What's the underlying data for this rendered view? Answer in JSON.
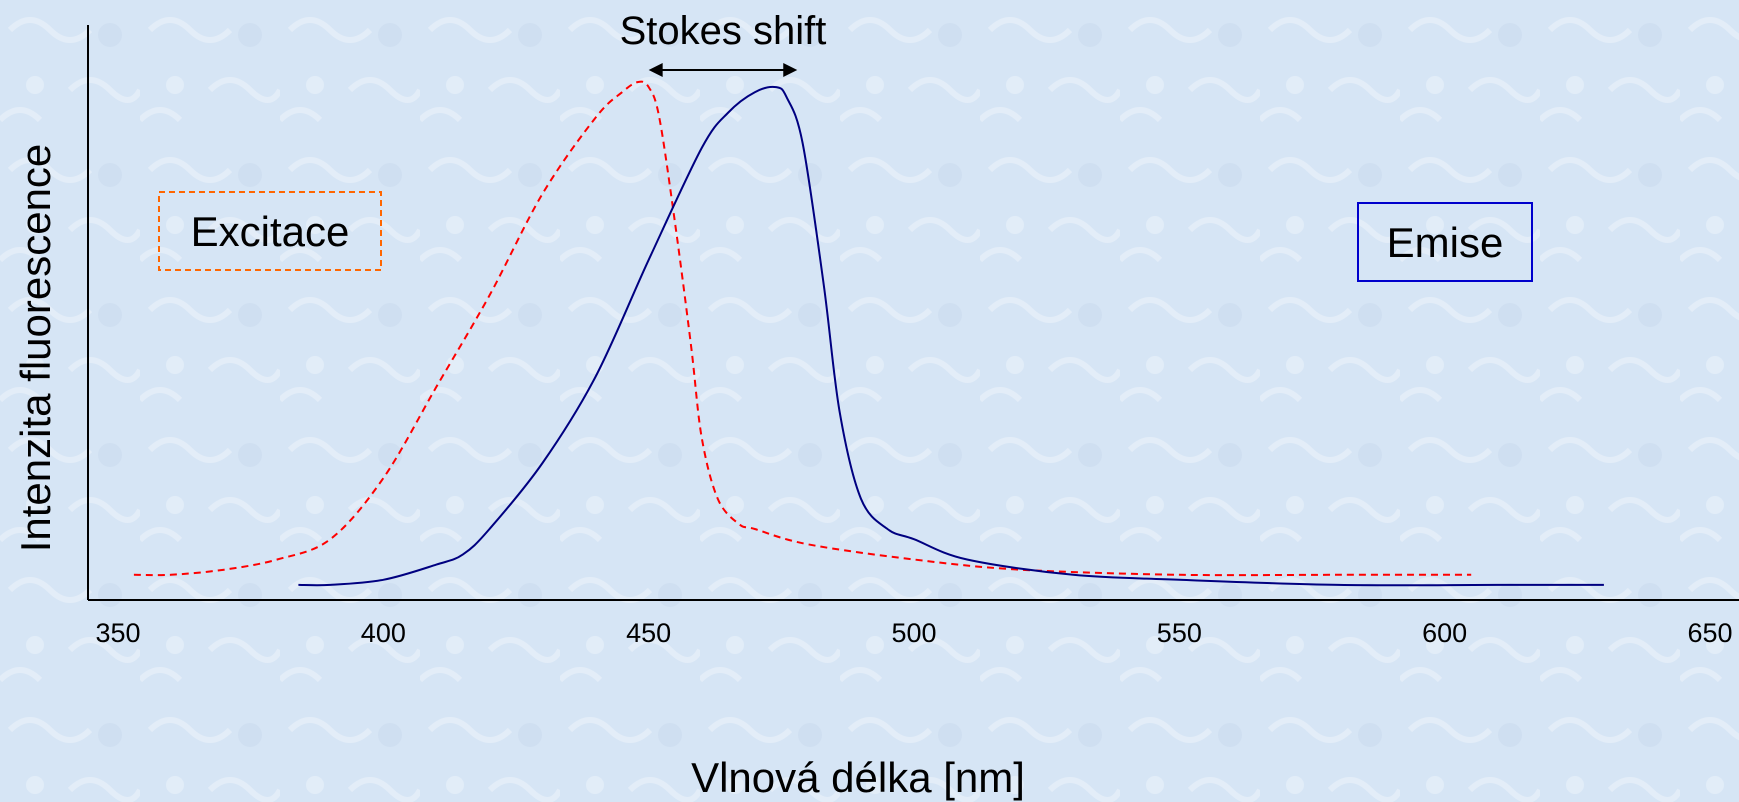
{
  "chart_data": {
    "type": "line",
    "xlabel": "Vlnová délka [nm]",
    "ylabel": "Intenzita fluorescence",
    "xlim": [
      350,
      650
    ],
    "ylim": [
      0,
      1
    ],
    "xticks": [
      "350",
      "400",
      "450",
      "500",
      "550",
      "600",
      "650"
    ],
    "yticks": [],
    "grid": false,
    "series": [
      {
        "name": "Excitace",
        "color": "#ff0000",
        "style": "dashed",
        "x": [
          353,
          360,
          370,
          380,
          390,
          400,
          410,
          420,
          430,
          440,
          445,
          448,
          450,
          452,
          455,
          458,
          460,
          463,
          467,
          470,
          480,
          500,
          520,
          550,
          580,
          605
        ],
        "y": [
          0.03,
          0.03,
          0.04,
          0.06,
          0.1,
          0.22,
          0.4,
          0.58,
          0.78,
          0.93,
          0.98,
          1.0,
          0.99,
          0.93,
          0.72,
          0.48,
          0.3,
          0.18,
          0.13,
          0.12,
          0.09,
          0.06,
          0.04,
          0.03,
          0.03,
          0.03
        ]
      },
      {
        "name": "Emise",
        "color": "#000080",
        "style": "solid",
        "x": [
          384,
          390,
          400,
          410,
          415,
          420,
          430,
          440,
          450,
          460,
          465,
          470,
          474,
          476,
          479,
          483,
          486,
          490,
          495,
          500,
          510,
          530,
          550,
          580,
          610,
          630
        ],
        "y": [
          0.01,
          0.01,
          0.02,
          0.05,
          0.07,
          0.12,
          0.25,
          0.42,
          0.65,
          0.87,
          0.94,
          0.98,
          0.99,
          0.97,
          0.88,
          0.6,
          0.35,
          0.18,
          0.12,
          0.1,
          0.06,
          0.03,
          0.02,
          0.01,
          0.01,
          0.01
        ]
      }
    ],
    "annotations": [
      {
        "text": "Stokes shift",
        "from_x": 450,
        "to_x": 478,
        "y": 1.02
      }
    ],
    "labels": {
      "excitation": "Excitace",
      "emission": "Emise"
    }
  },
  "colors": {
    "background": "#d6e5f5",
    "excitation_line": "#ff0000",
    "excitation_box": "#ff6600",
    "emission_line": "#000080",
    "emission_box": "#0000cc"
  }
}
